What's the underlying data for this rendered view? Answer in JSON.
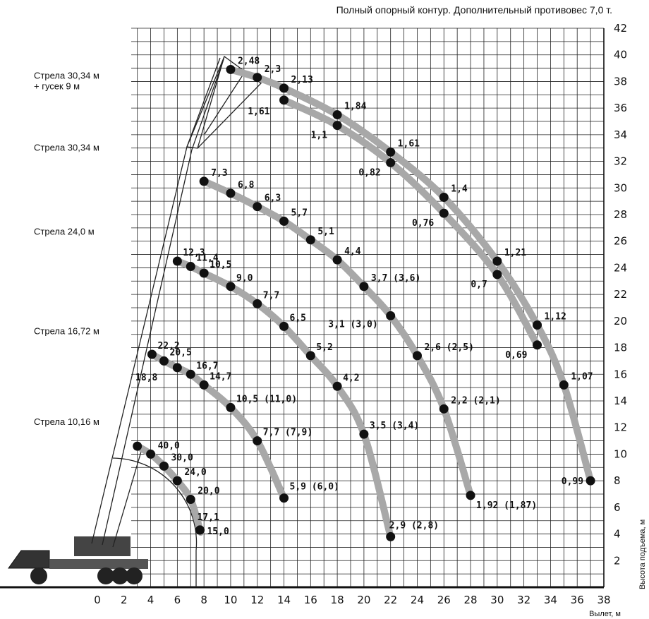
{
  "header": {
    "title": "Полный опорный контур. Дополнительный противовес 7,0 т."
  },
  "chart_data": {
    "type": "line",
    "title": "Полный опорный контур. Дополнительный противовес 7,0 т.",
    "xlabel": "Вылет, м",
    "ylabel": "Высота подъема, м",
    "xlim": [
      0,
      38
    ],
    "ylim": [
      0,
      42
    ],
    "x_ticks": [
      "0",
      "2",
      "4",
      "6",
      "8",
      "10",
      "12",
      "14",
      "16",
      "18",
      "20",
      "22",
      "24",
      "26",
      "28",
      "30",
      "32",
      "34",
      "36",
      "38"
    ],
    "y_ticks": [
      "2",
      "4",
      "6",
      "8",
      "10",
      "12",
      "14",
      "16",
      "18",
      "20",
      "22",
      "24",
      "26",
      "28",
      "30",
      "32",
      "34",
      "36",
      "38",
      "40",
      "42"
    ],
    "grid": true,
    "series": [
      {
        "name": "Стрела 10,16 м",
        "label": "Стрела 10,16 м",
        "label_y": 12.2,
        "points": [
          {
            "x": 3.0,
            "y": 10.6,
            "label": ""
          },
          {
            "x": 4.0,
            "y": 10.0,
            "label": "40,0"
          },
          {
            "x": 5.0,
            "y": 9.1,
            "label": "30,0"
          },
          {
            "x": 6.0,
            "y": 8.0,
            "label": "24,0"
          },
          {
            "x": 7.0,
            "y": 6.6,
            "label": "20,0"
          },
          {
            "x": 7.7,
            "y": 4.3,
            "label": "17,1"
          },
          {
            "x": 7.7,
            "y": 4.3,
            "label": "15,0"
          }
        ]
      },
      {
        "name": "Стрела 16,72 м",
        "label": "Стрела 16,72 м",
        "label_y": 19.0,
        "points": [
          {
            "x": 4.1,
            "y": 17.5,
            "label": "22,2"
          },
          {
            "x": 5.0,
            "y": 17.0,
            "label": "20,5"
          },
          {
            "x": 6.0,
            "y": 16.5,
            "label": "18,8"
          },
          {
            "x": 7.0,
            "y": 16.0,
            "label": "16,7"
          },
          {
            "x": 8.0,
            "y": 15.2,
            "label": "14,7"
          },
          {
            "x": 10.0,
            "y": 13.5,
            "label": "10,5 (11,0)"
          },
          {
            "x": 12.0,
            "y": 11.0,
            "label": "7,7 (7,9)"
          },
          {
            "x": 14.0,
            "y": 6.7,
            "label": "5,9 (6,0)"
          }
        ]
      },
      {
        "name": "Стрела 24,0 м",
        "label": "Стрела 24,0 м",
        "label_y": 26.5,
        "points": [
          {
            "x": 6.0,
            "y": 24.5,
            "label": "12,3"
          },
          {
            "x": 7.0,
            "y": 24.1,
            "label": "11,4"
          },
          {
            "x": 8.0,
            "y": 23.6,
            "label": "10,5"
          },
          {
            "x": 10.0,
            "y": 22.6,
            "label": "9,0"
          },
          {
            "x": 12.0,
            "y": 21.3,
            "label": "7,7"
          },
          {
            "x": 14.0,
            "y": 19.6,
            "label": "6,5"
          },
          {
            "x": 16.0,
            "y": 17.4,
            "label": "5,2"
          },
          {
            "x": 18.0,
            "y": 15.1,
            "label": "4,2"
          },
          {
            "x": 20.0,
            "y": 11.5,
            "label": "3,5 (3,4)"
          },
          {
            "x": 22.0,
            "y": 3.8,
            "label": "2,9 (2,8)"
          }
        ]
      },
      {
        "name": "Стрела 30,34 м",
        "label": "Стрела 30,34 м",
        "label_y": 32.8,
        "points": [
          {
            "x": 8.0,
            "y": 30.5,
            "label": "7,3"
          },
          {
            "x": 10.0,
            "y": 29.6,
            "label": "6,8"
          },
          {
            "x": 12.0,
            "y": 28.6,
            "label": "6,3"
          },
          {
            "x": 14.0,
            "y": 27.5,
            "label": "5,7"
          },
          {
            "x": 16.0,
            "y": 26.1,
            "label": "5,1"
          },
          {
            "x": 18.0,
            "y": 24.6,
            "label": "4,4"
          },
          {
            "x": 20.0,
            "y": 22.6,
            "label": "3,7 (3,6)"
          },
          {
            "x": 22.0,
            "y": 20.4,
            "label": "3,1 (3,0)"
          },
          {
            "x": 24.0,
            "y": 17.4,
            "label": "2,6 (2,5)"
          },
          {
            "x": 26.0,
            "y": 13.4,
            "label": "2,2 (2,1)"
          },
          {
            "x": 28.0,
            "y": 6.9,
            "label": "1,92 (1,87)"
          }
        ]
      },
      {
        "name": "Стрела 30,34 м + гусек 9 м (верх)",
        "label": "Стрела 30,34 м\n+ гусек 9 м",
        "label_y": 38.2,
        "points": [
          {
            "x": 10.0,
            "y": 38.9,
            "label": "2,48"
          },
          {
            "x": 12.0,
            "y": 38.3,
            "label": "2,3"
          },
          {
            "x": 14.0,
            "y": 37.5,
            "label": "2,13"
          },
          {
            "x": 18.0,
            "y": 35.5,
            "label": "1,84"
          },
          {
            "x": 22.0,
            "y": 32.7,
            "label": "1,61"
          },
          {
            "x": 26.0,
            "y": 29.3,
            "label": "1,4"
          },
          {
            "x": 30.0,
            "y": 24.5,
            "label": "1,21"
          },
          {
            "x": 33.0,
            "y": 19.7,
            "label": "1,12"
          },
          {
            "x": 35.0,
            "y": 15.2,
            "label": "1,07"
          },
          {
            "x": 37.0,
            "y": 8.0,
            "label": "0,99"
          }
        ]
      },
      {
        "name": "Стрела 30,34 м + гусек 9 м (низ)",
        "label": "",
        "points": [
          {
            "x": 14.0,
            "y": 36.6,
            "label": "1,61"
          },
          {
            "x": 18.0,
            "y": 34.7,
            "label": "1,1"
          },
          {
            "x": 22.0,
            "y": 31.9,
            "label": "0,82"
          },
          {
            "x": 26.0,
            "y": 28.1,
            "label": "0,76"
          },
          {
            "x": 30.0,
            "y": 23.5,
            "label": "0,7"
          },
          {
            "x": 33.0,
            "y": 18.2,
            "label": "0,69"
          }
        ]
      }
    ]
  }
}
